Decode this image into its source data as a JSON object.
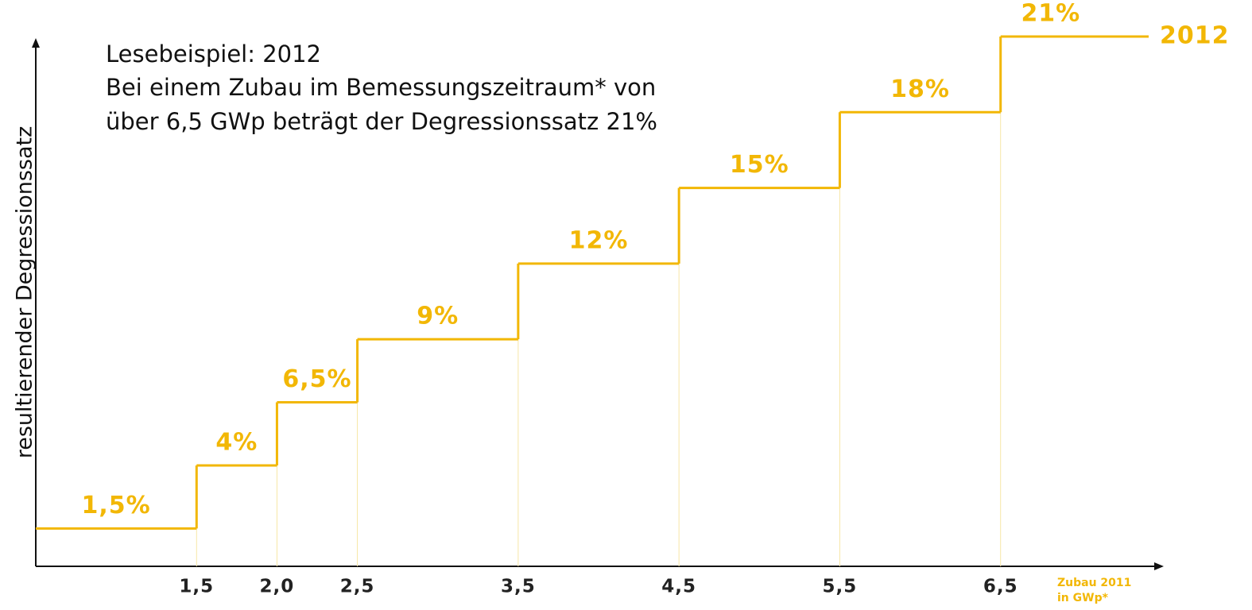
{
  "chart_data": {
    "type": "step",
    "annotation": [
      "Lesebeispiel: 2012",
      "Bei einem Zubau im Bemessungszeitraum* von",
      "über 6,5 GWp beträgt der Degressionssatz 21%"
    ],
    "y_label": "resultierender Degressionssatz",
    "x_label": [
      "Zubau 2011",
      "in GWp*"
    ],
    "series_name": "2012",
    "color": "#f2b705",
    "values": [
      1.5,
      4,
      6.5,
      9,
      12,
      15,
      18,
      21
    ],
    "value_labels": [
      "1,5%",
      "4%",
      "6,5%",
      "9%",
      "12%",
      "15%",
      "18%",
      "21%"
    ],
    "xlim": [
      0.5,
      7.5
    ],
    "xticks": [
      {
        "value": 1.5,
        "label": "1,5"
      },
      {
        "value": 2.0,
        "label": "2,0"
      },
      {
        "value": 2.5,
        "label": "2,5"
      },
      {
        "value": 3.5,
        "label": "3,5"
      },
      {
        "value": 4.5,
        "label": "4,5"
      },
      {
        "value": 5.5,
        "label": "5,5"
      },
      {
        "value": 6.5,
        "label": "6,5"
      }
    ],
    "ylim": [
      0,
      21
    ]
  }
}
